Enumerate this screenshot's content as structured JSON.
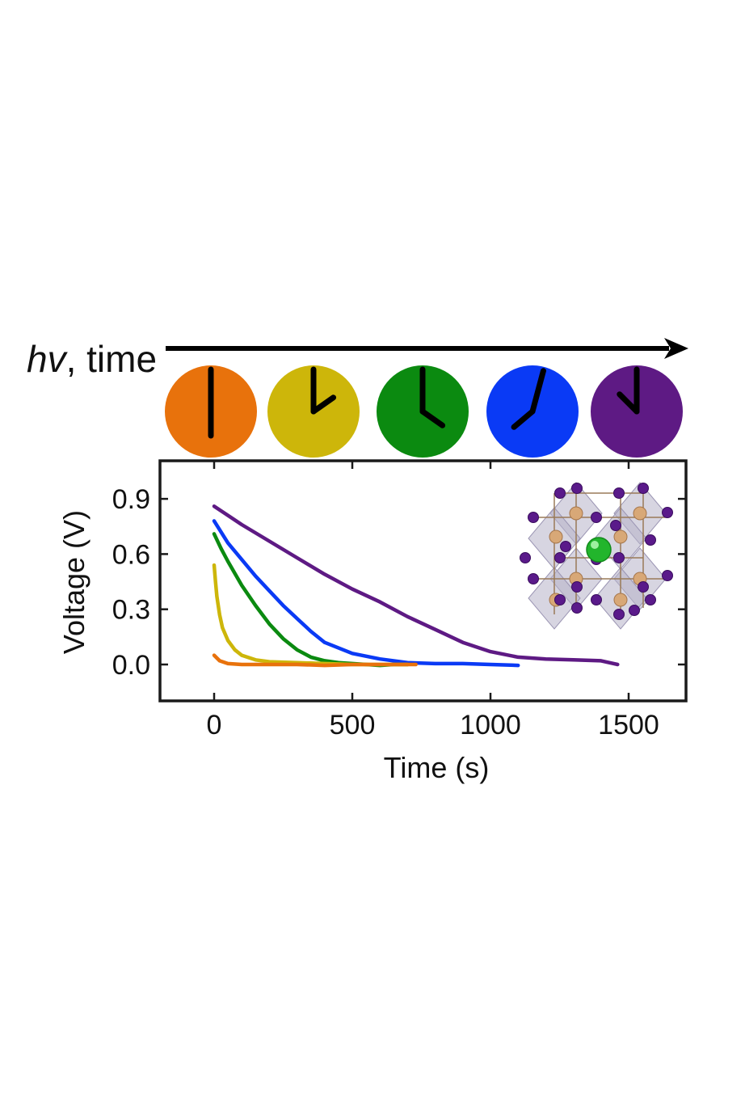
{
  "header": {
    "hv_italic": "hv",
    "hv_rest": ", time"
  },
  "clocks": [
    {
      "color": "#E8720C",
      "minute_angle_deg": 0,
      "hour_angle_deg": 180
    },
    {
      "color": "#CDB60A",
      "minute_angle_deg": 0,
      "hour_angle_deg": 55
    },
    {
      "color": "#0B8A10",
      "minute_angle_deg": 0,
      "hour_angle_deg": 125
    },
    {
      "color": "#0A3AF5",
      "minute_angle_deg": 15,
      "hour_angle_deg": 230
    },
    {
      "color": "#5E1A84",
      "minute_angle_deg": 0,
      "hour_angle_deg": 315
    }
  ],
  "chart_data": {
    "type": "line",
    "xlabel": "Time (s)",
    "ylabel": "Voltage (V)",
    "xlim": [
      -200,
      1700
    ],
    "ylim": [
      -0.2,
      1.1
    ],
    "xticks": [
      0,
      500,
      1000,
      1500
    ],
    "xtick_labels": [
      "0",
      "500",
      "1000",
      "1500"
    ],
    "yticks": [
      0.0,
      0.3,
      0.6,
      0.9
    ],
    "ytick_labels": [
      "0.0",
      "0.3",
      "0.6",
      "0.9"
    ],
    "grid": false,
    "series": [
      {
        "color": "#5E1A84",
        "x": [
          0,
          100,
          200,
          300,
          400,
          500,
          600,
          700,
          800,
          900,
          1000,
          1100,
          1200,
          1300,
          1400,
          1460
        ],
        "y": [
          0.86,
          0.76,
          0.67,
          0.58,
          0.49,
          0.41,
          0.34,
          0.26,
          0.19,
          0.12,
          0.07,
          0.04,
          0.03,
          0.025,
          0.02,
          0.0
        ]
      },
      {
        "color": "#0A3AF5",
        "x": [
          0,
          50,
          100,
          150,
          200,
          250,
          300,
          350,
          400,
          500,
          600,
          700,
          800,
          900,
          1000,
          1100
        ],
        "y": [
          0.78,
          0.66,
          0.57,
          0.48,
          0.4,
          0.32,
          0.25,
          0.18,
          0.12,
          0.06,
          0.03,
          0.01,
          0.005,
          0.005,
          0.0,
          -0.005
        ]
      },
      {
        "color": "#0B8A10",
        "x": [
          0,
          25,
          50,
          100,
          150,
          200,
          250,
          300,
          350,
          400,
          450,
          500,
          550,
          600,
          650,
          700
        ],
        "y": [
          0.71,
          0.63,
          0.56,
          0.43,
          0.32,
          0.22,
          0.14,
          0.08,
          0.04,
          0.02,
          0.01,
          0.005,
          0.0,
          -0.005,
          0.0,
          0.0
        ]
      },
      {
        "color": "#CDB60A",
        "x": [
          0,
          5,
          10,
          20,
          30,
          50,
          75,
          100,
          150,
          200,
          300,
          400,
          500,
          600,
          700
        ],
        "y": [
          0.54,
          0.45,
          0.37,
          0.27,
          0.2,
          0.13,
          0.08,
          0.05,
          0.025,
          0.015,
          0.01,
          0.005,
          0.0,
          0.0,
          0.0
        ]
      },
      {
        "color": "#E8720C",
        "x": [
          0,
          20,
          50,
          100,
          200,
          300,
          400,
          500,
          600,
          700,
          730
        ],
        "y": [
          0.05,
          0.02,
          0.005,
          0.0,
          0.0,
          0.0,
          -0.005,
          0.0,
          0.0,
          0.0,
          0.0
        ]
      }
    ]
  }
}
